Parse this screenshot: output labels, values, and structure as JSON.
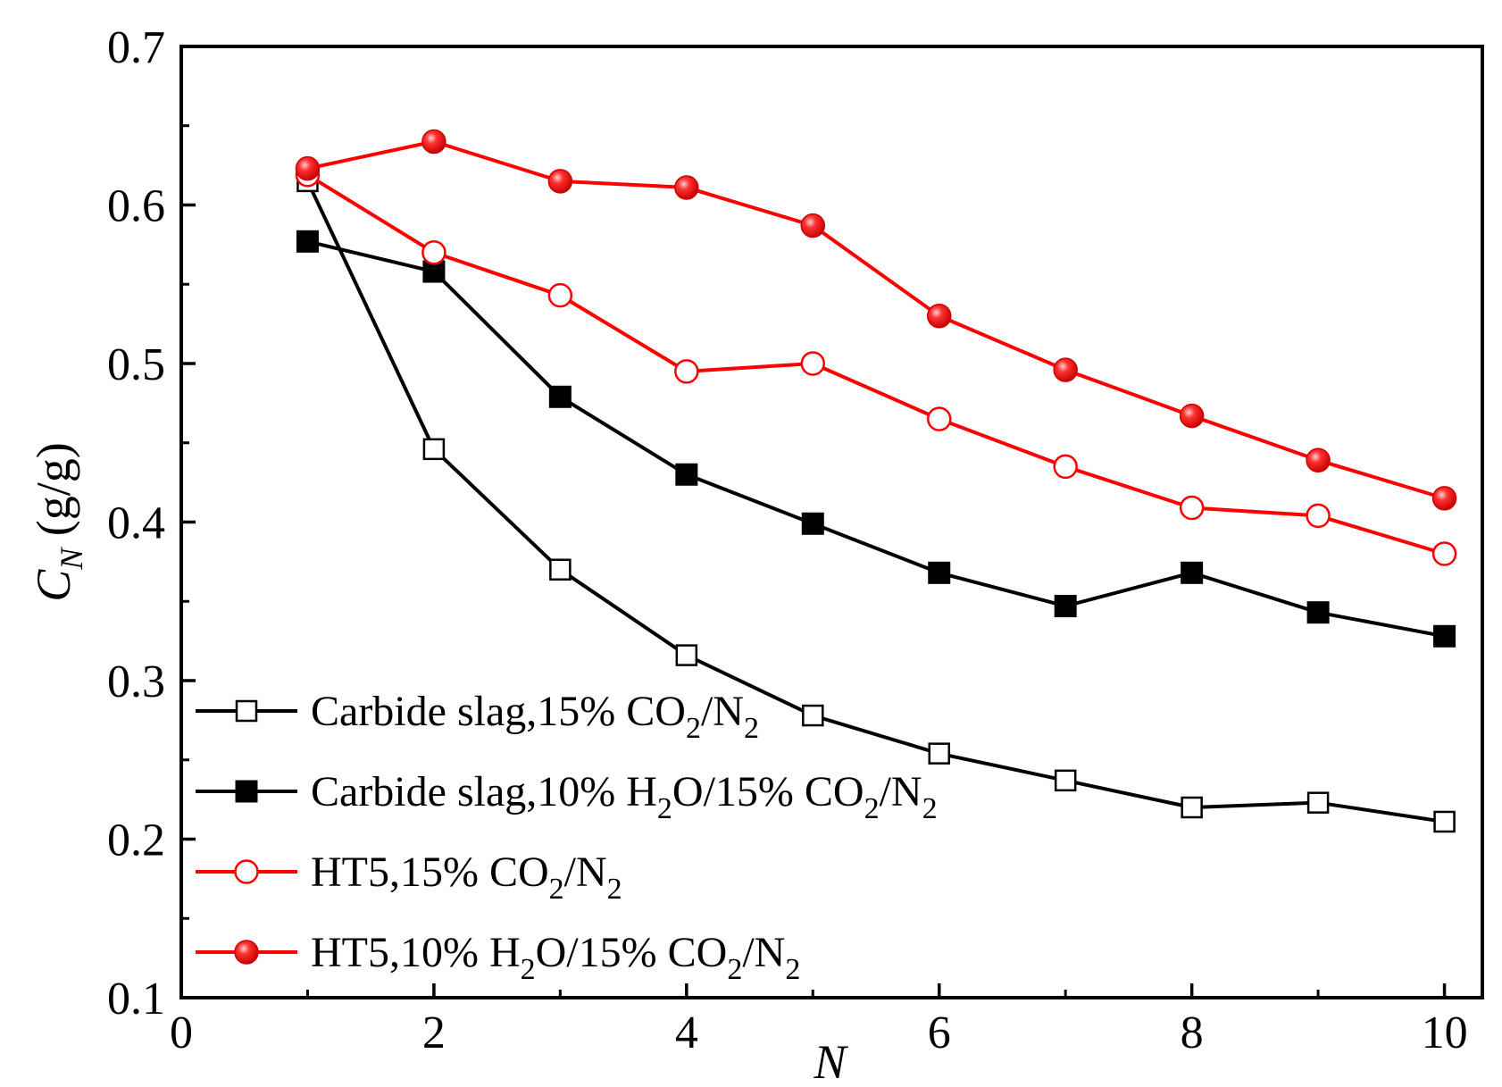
{
  "chart_data": {
    "type": "line",
    "title": "",
    "xlabel": "N",
    "ylabel_main": "C",
    "ylabel_sub": "N",
    "ylabel_unit": " (g/g)",
    "xlim": [
      0,
      10.3
    ],
    "ylim": [
      0.1,
      0.7
    ],
    "xticks": [
      0,
      2,
      4,
      6,
      8,
      10
    ],
    "xtick_labels": [
      "0",
      "2",
      "4",
      "6",
      "8",
      "10"
    ],
    "xminor": [
      1,
      3,
      5,
      7,
      9
    ],
    "yticks": [
      0.1,
      0.2,
      0.3,
      0.4,
      0.5,
      0.6,
      0.7
    ],
    "ytick_labels": [
      "0.1",
      "0.2",
      "0.3",
      "0.4",
      "0.5",
      "0.6",
      "0.7"
    ],
    "yminor": [
      0.15,
      0.25,
      0.35,
      0.45,
      0.55,
      0.65
    ],
    "grid": false,
    "legend_position": "bottom-left",
    "x": [
      1,
      2,
      3,
      4,
      5,
      6,
      7,
      8,
      9,
      10
    ],
    "series": [
      {
        "name": "Carbide slag,15% CO2/N2",
        "legend": [
          {
            "t": "Carbide slag,15% CO",
            "sub": false
          },
          {
            "t": "2",
            "sub": true
          },
          {
            "t": "/N",
            "sub": false
          },
          {
            "t": "2",
            "sub": true
          }
        ],
        "color": "#000000",
        "marker": "square-open",
        "values": [
          0.615,
          0.446,
          0.37,
          0.316,
          0.278,
          0.254,
          0.237,
          0.22,
          0.223,
          0.211
        ]
      },
      {
        "name": "Carbide slag,10% H2O/15% CO2/N2",
        "legend": [
          {
            "t": "Carbide slag,10% H",
            "sub": false
          },
          {
            "t": "2",
            "sub": true
          },
          {
            "t": "O/15% CO",
            "sub": false
          },
          {
            "t": "2",
            "sub": true
          },
          {
            "t": "/N",
            "sub": false
          },
          {
            "t": "2",
            "sub": true
          }
        ],
        "color": "#000000",
        "marker": "square-filled",
        "values": [
          0.577,
          0.558,
          0.479,
          0.43,
          0.399,
          0.368,
          0.347,
          0.368,
          0.343,
          0.328
        ]
      },
      {
        "name": "HT5,15% CO2/N2",
        "legend": [
          {
            "t": "HT5,15% CO",
            "sub": false
          },
          {
            "t": "2",
            "sub": true
          },
          {
            "t": "/N",
            "sub": false
          },
          {
            "t": "2",
            "sub": true
          }
        ],
        "color": "#ff0000",
        "marker": "circle-open",
        "values": [
          0.619,
          0.57,
          0.543,
          0.495,
          0.5,
          0.465,
          0.435,
          0.409,
          0.404,
          0.38
        ]
      },
      {
        "name": "HT5,10% H2O/15% CO2/N2",
        "legend": [
          {
            "t": "HT5,10% H",
            "sub": false
          },
          {
            "t": "2",
            "sub": true
          },
          {
            "t": "O/15% CO",
            "sub": false
          },
          {
            "t": "2",
            "sub": true
          },
          {
            "t": "/N",
            "sub": false
          },
          {
            "t": "2",
            "sub": true
          }
        ],
        "color": "#ff0000",
        "marker": "circle-filled",
        "values": [
          0.623,
          0.64,
          0.615,
          0.611,
          0.587,
          0.53,
          0.496,
          0.467,
          0.439,
          0.415
        ]
      }
    ]
  }
}
